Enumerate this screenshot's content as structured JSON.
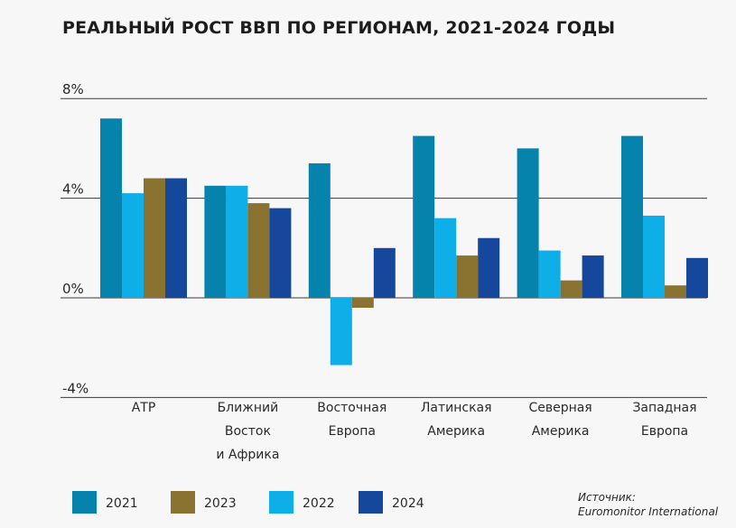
{
  "colors": {
    "2021": "#0583ad",
    "2022": "#0eaee8",
    "2023": "#8a7331",
    "2024": "#15479d",
    "axis": "#3a3a3a",
    "background": "#f7f7f7"
  },
  "chart_data": {
    "type": "bar",
    "title": "РЕАЛЬНЫЙ РОСТ ВВП ПО РЕГИОНАМ, 2021-2024 ГОДЫ",
    "categories": [
      [
        "АТР"
      ],
      [
        "Ближний",
        "Восток",
        "и Африка"
      ],
      [
        "Восточная",
        "Европа"
      ],
      [
        "Латинская",
        "Америка"
      ],
      [
        "Северная",
        "Америка"
      ],
      [
        "Западная",
        "Европа"
      ]
    ],
    "series": [
      {
        "name": "2021",
        "values": [
          7.2,
          4.5,
          5.4,
          6.5,
          6.0,
          6.5
        ]
      },
      {
        "name": "2022",
        "values": [
          4.2,
          4.5,
          -2.7,
          3.2,
          1.9,
          3.3
        ]
      },
      {
        "name": "2023",
        "values": [
          4.8,
          3.8,
          -0.4,
          1.7,
          0.7,
          0.5
        ]
      },
      {
        "name": "2024",
        "values": [
          4.8,
          3.6,
          2.0,
          2.4,
          1.7,
          1.6
        ]
      }
    ],
    "yticks": [
      8,
      4,
      0,
      -4
    ],
    "ytick_labels": [
      "8%",
      "4%",
      "0%",
      "-4%"
    ],
    "ylim": [
      -4,
      8
    ],
    "grid": "horizontal",
    "legend": {
      "position": "bottom",
      "order": [
        "2021",
        "2023",
        "2022",
        "2024"
      ]
    },
    "source": [
      "Источник:",
      "Euromonitor International"
    ]
  }
}
